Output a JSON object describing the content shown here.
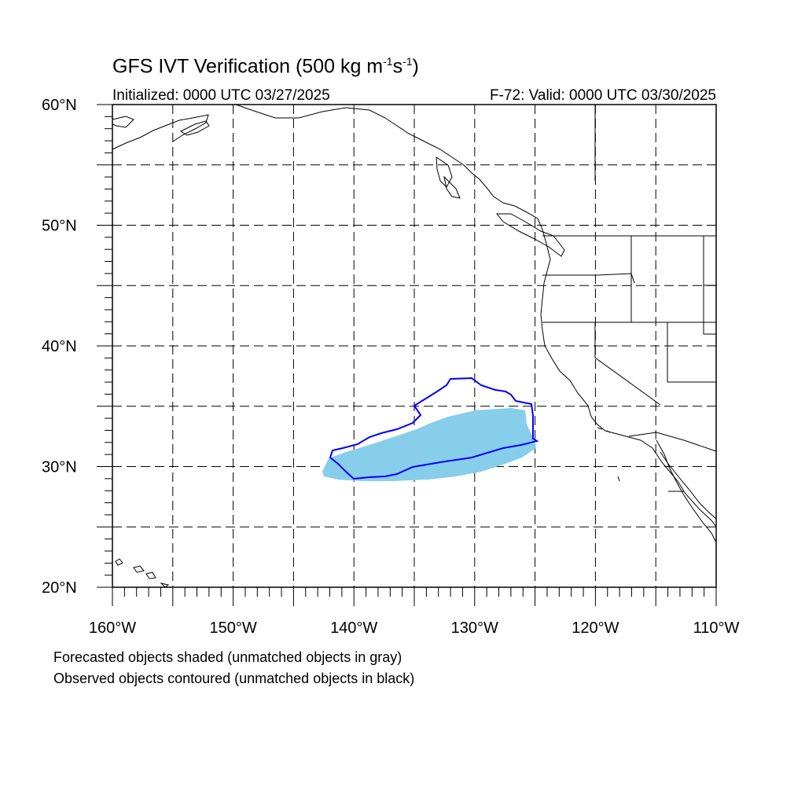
{
  "title": {
    "main": "GFS IVT Verification (500 kg m",
    "sup1": "-1",
    "mid": "s",
    "sup2": "-1",
    "end": ")"
  },
  "subtitle": {
    "initialized": "Initialized: 0000 UTC 03/27/2025",
    "valid": "F-72: Valid: 0000 UTC 03/30/2025"
  },
  "map": {
    "lon_range": [
      -160,
      -110
    ],
    "lat_range": [
      20,
      60
    ],
    "grid_lon_step": 5,
    "grid_lat_step": 5,
    "grid": "dashed",
    "lat_tick_labels": [
      {
        "lat": 60,
        "text": "60°N"
      },
      {
        "lat": 50,
        "text": "50°N"
      },
      {
        "lat": 40,
        "text": "40°N"
      },
      {
        "lat": 30,
        "text": "30°N"
      },
      {
        "lat": 20,
        "text": "20°N"
      }
    ],
    "lon_tick_labels": [
      {
        "lon": -160,
        "text": "160°W"
      },
      {
        "lon": -150,
        "text": "150°W"
      },
      {
        "lon": -140,
        "text": "140°W"
      },
      {
        "lon": -130,
        "text": "130°W"
      },
      {
        "lon": -120,
        "text": "120°W"
      },
      {
        "lon": -110,
        "text": "110°W"
      }
    ],
    "forecast_object_color": "#87ceeb",
    "observed_contour_color": "#0000ff",
    "coastline_color": "#000000"
  },
  "captions": {
    "line1": "Forecasted objects shaded (unmatched objects in gray)",
    "line2": "Observed objects contoured (unmatched objects in black)"
  }
}
